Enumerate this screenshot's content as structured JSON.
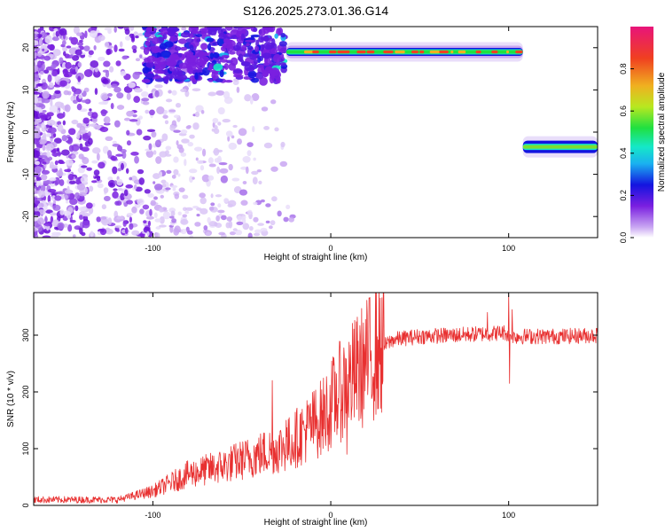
{
  "figure": {
    "title": "S126.2025.273.01.36.G14"
  },
  "chart_data": [
    {
      "type": "heatmap",
      "name": "spectrogram",
      "xlabel": "Height of straight line (km)",
      "ylabel": "Frequency (Hz)",
      "xlim": [
        -167,
        150
      ],
      "ylim": [
        -25,
        25
      ],
      "xticks": [
        -100,
        0,
        100
      ],
      "yticks": [
        -20,
        -10,
        0,
        10,
        20
      ],
      "colorbar": {
        "label": "Normalized spectral amplitude",
        "range": [
          0,
          1
        ],
        "ticks": [
          "0.0",
          "0.2",
          "0.4",
          "0.6",
          "0.8"
        ],
        "colormap": [
          "#ffffff",
          "#c9a6f2",
          "#7a1fe0",
          "#1414e0",
          "#1ab0f0",
          "#15e8c8",
          "#20e040",
          "#b8e820",
          "#f0b020",
          "#f04020",
          "#e8147a"
        ]
      },
      "features": {
        "noise_region_x": [
          -167,
          -100
        ],
        "burst_region": {
          "x": [
            -105,
            -25
          ],
          "freq": [
            12,
            25
          ]
        },
        "main_line": {
          "x": [
            -25,
            108
          ],
          "freq": 19
        },
        "shifted_line": {
          "x": [
            108,
            150
          ],
          "freq": -3.5
        }
      }
    },
    {
      "type": "line",
      "name": "snr",
      "xlabel": "Height of straight line (km)",
      "ylabel": "SNR (10 * v/v)",
      "xlim": [
        -167,
        150
      ],
      "ylim": [
        0,
        375
      ],
      "xticks": [
        -100,
        0,
        100
      ],
      "yticks": [
        0,
        100,
        200,
        300
      ],
      "series": [
        {
          "name": "SNR",
          "color": "#e83030",
          "trend": [
            [
              -167,
              10
            ],
            [
              -120,
              10
            ],
            [
              -100,
              25
            ],
            [
              -80,
              55
            ],
            [
              -60,
              70
            ],
            [
              -40,
              90
            ],
            [
              -25,
              105
            ],
            [
              -15,
              130
            ],
            [
              -5,
              155
            ],
            [
              5,
              200
            ],
            [
              15,
              235
            ],
            [
              25,
              270
            ],
            [
              35,
              292
            ],
            [
              50,
              298
            ],
            [
              70,
              300
            ],
            [
              90,
              303
            ],
            [
              98,
              305
            ],
            [
              100,
              300
            ],
            [
              102,
              298
            ],
            [
              110,
              298
            ],
            [
              130,
              298
            ],
            [
              150,
              300
            ]
          ],
          "spikes": [
            [
              -33,
              220
            ],
            [
              -25,
              150
            ],
            [
              -1,
              160
            ],
            [
              9,
              90
            ],
            [
              100,
              372
            ],
            [
              100.5,
              215
            ],
            [
              102,
              345
            ],
            [
              88,
              340
            ]
          ]
        }
      ]
    }
  ]
}
